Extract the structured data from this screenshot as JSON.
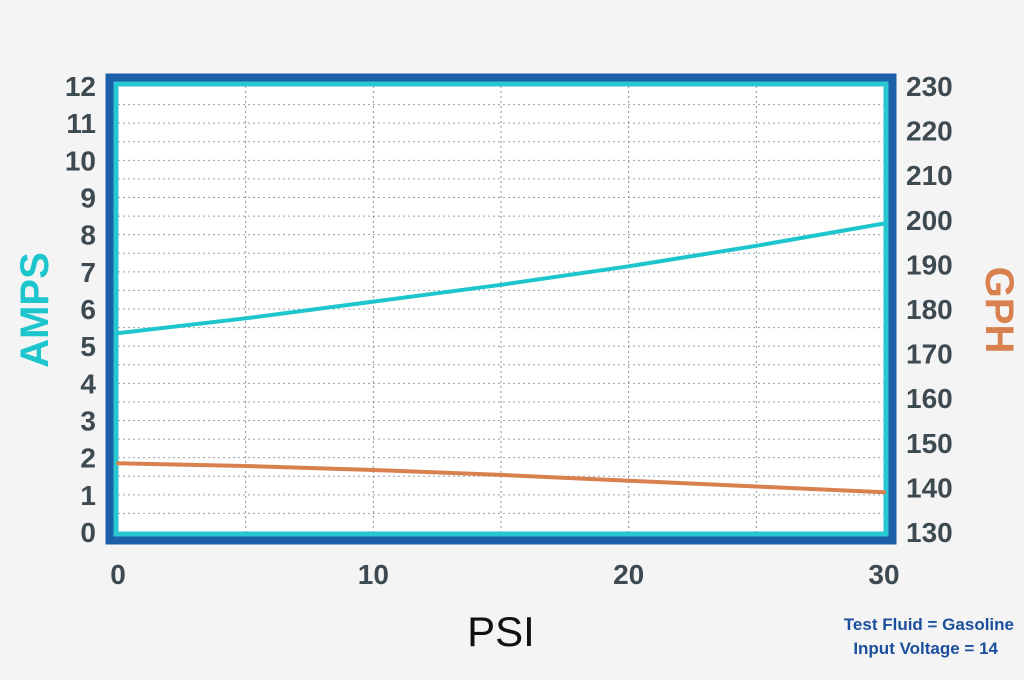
{
  "chart_data": {
    "type": "line",
    "xlabel": "PSI",
    "ylabel_left": "AMPS",
    "ylabel_right": "GPH",
    "xlim": [
      0,
      30
    ],
    "ylim_left": [
      0,
      12
    ],
    "ylim_right": [
      130,
      230
    ],
    "x_ticks": [
      "0",
      "10",
      "20",
      "30"
    ],
    "y_ticks_left": [
      "0",
      "1",
      "2",
      "3",
      "4",
      "5",
      "6",
      "7",
      "8",
      "9",
      "10",
      "11",
      "12"
    ],
    "y_ticks_right": [
      "130",
      "140",
      "150",
      "160",
      "170",
      "180",
      "190",
      "200",
      "210",
      "220",
      "230"
    ],
    "grid": true,
    "series": [
      {
        "axis": "left",
        "color": "#1cc6cc",
        "x": [
          0,
          5,
          10,
          15,
          20,
          25,
          30
        ],
        "y": [
          5.35,
          5.75,
          6.2,
          6.65,
          7.15,
          7.7,
          8.3
        ]
      },
      {
        "axis": "right",
        "color": "#d9804f",
        "x": [
          0,
          5,
          10,
          15,
          20,
          25,
          30
        ],
        "y": [
          145.4,
          144.8,
          143.9,
          142.8,
          141.5,
          140.2,
          138.9
        ]
      }
    ],
    "colors": {
      "frame": "#1b5fa8",
      "plot_border": "#29c7d0",
      "tick_text": "#3e4a52",
      "left_title": "#1cc6cc",
      "right_title": "#d9804f",
      "x_title": "#111111",
      "note": "#1b4f9c"
    }
  },
  "notes": {
    "line1": "Test Fluid = Gasoline",
    "line2": "Input Voltage = 14"
  }
}
